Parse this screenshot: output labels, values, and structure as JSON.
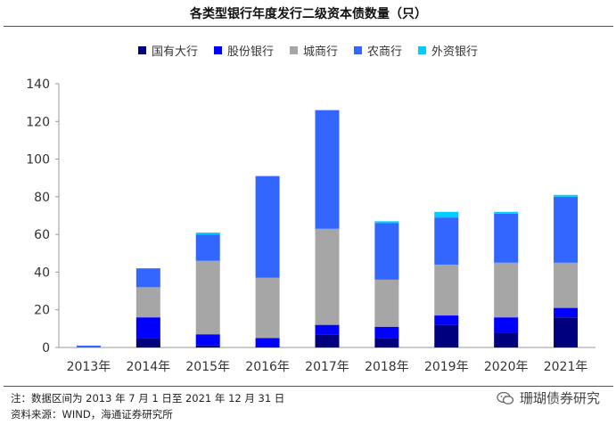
{
  "chart_data": {
    "type": "bar",
    "stacked": true,
    "title": "各类型银行年度发行二级资本债数量（只）",
    "categories": [
      "2013年",
      "2014年",
      "2015年",
      "2016年",
      "2017年",
      "2018年",
      "2019年",
      "2020年",
      "2021年"
    ],
    "series": [
      {
        "name": "国有大行",
        "color": "#00007F",
        "values": [
          0,
          5,
          1,
          0,
          7,
          5,
          12,
          8,
          16
        ]
      },
      {
        "name": "股份银行",
        "color": "#0000FF",
        "values": [
          0,
          11,
          6,
          5,
          5,
          6,
          5,
          8,
          5
        ]
      },
      {
        "name": "城商行",
        "color": "#A6A6A6",
        "values": [
          0,
          16,
          39,
          32,
          51,
          25,
          27,
          29,
          24
        ]
      },
      {
        "name": "农商行",
        "color": "#3366FF",
        "values": [
          1,
          10,
          14,
          54,
          63,
          30,
          25,
          26,
          35
        ]
      },
      {
        "name": "外资银行",
        "color": "#00CCFF",
        "values": [
          0,
          0,
          1,
          0,
          0,
          1,
          3,
          1,
          1
        ]
      }
    ],
    "yticks": [
      "0",
      "20",
      "40",
      "60",
      "80",
      "100",
      "120",
      "140"
    ],
    "ylim": [
      0,
      140
    ],
    "grid": false,
    "legend_position": "top"
  },
  "footer": {
    "note": "注：数据区间为 2013 年 7 月 1 日至 2021 年 12 月 31 日",
    "source": "资料来源：WIND，海通证券研究所",
    "watermark": "珊瑚债券研究"
  }
}
